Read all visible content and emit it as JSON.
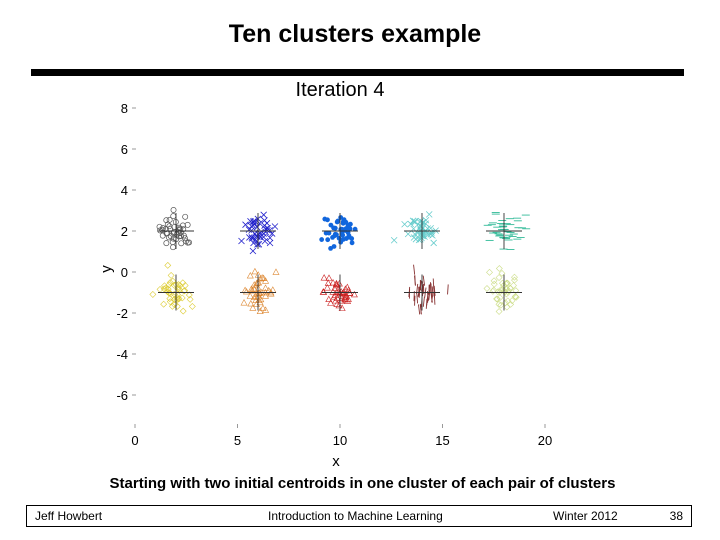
{
  "slide": {
    "title": "Ten clusters example",
    "caption": "Starting with two initial centroids in one cluster of each pair of clusters"
  },
  "footer": {
    "author": "Jeff Howbert",
    "course": "Introduction to Machine Learning",
    "term": "Winter 2012",
    "page": "38"
  },
  "chart_data": {
    "type": "scatter",
    "title": "Iteration 4",
    "xlabel": "x",
    "ylabel": "y",
    "xlim": [
      0,
      20
    ],
    "ylim": [
      -6,
      8
    ],
    "x_ticks": [
      0,
      5,
      10,
      15,
      20
    ],
    "y_ticks": [
      8,
      6,
      4,
      2,
      0,
      -2,
      -4,
      -6
    ],
    "y_tick_labels": [
      "8",
      "6",
      "4",
      "2",
      "0",
      "-2",
      "-4",
      "-6"
    ],
    "grid": false,
    "clusters": [
      {
        "center": [
          2,
          2
        ],
        "color": "#555555",
        "marker": "circle"
      },
      {
        "center": [
          6,
          2
        ],
        "color": "#2222cc",
        "marker": "x"
      },
      {
        "center": [
          10,
          2
        ],
        "color": "#1166dd",
        "marker": "dot"
      },
      {
        "center": [
          14,
          2
        ],
        "color": "#66cccc",
        "marker": "x"
      },
      {
        "center": [
          18,
          2
        ],
        "color": "#33bb99",
        "marker": "dash"
      },
      {
        "center": [
          2,
          -1
        ],
        "color": "#ddcc33",
        "marker": "diamond"
      },
      {
        "center": [
          6,
          -1
        ],
        "color": "#dd8833",
        "marker": "triangle"
      },
      {
        "center": [
          10,
          -1
        ],
        "color": "#cc2222",
        "marker": "triangle"
      },
      {
        "center": [
          14,
          -1
        ],
        "color": "#883333",
        "marker": "line"
      },
      {
        "center": [
          18,
          -1
        ],
        "color": "#ccdd88",
        "marker": "diamond"
      }
    ]
  }
}
